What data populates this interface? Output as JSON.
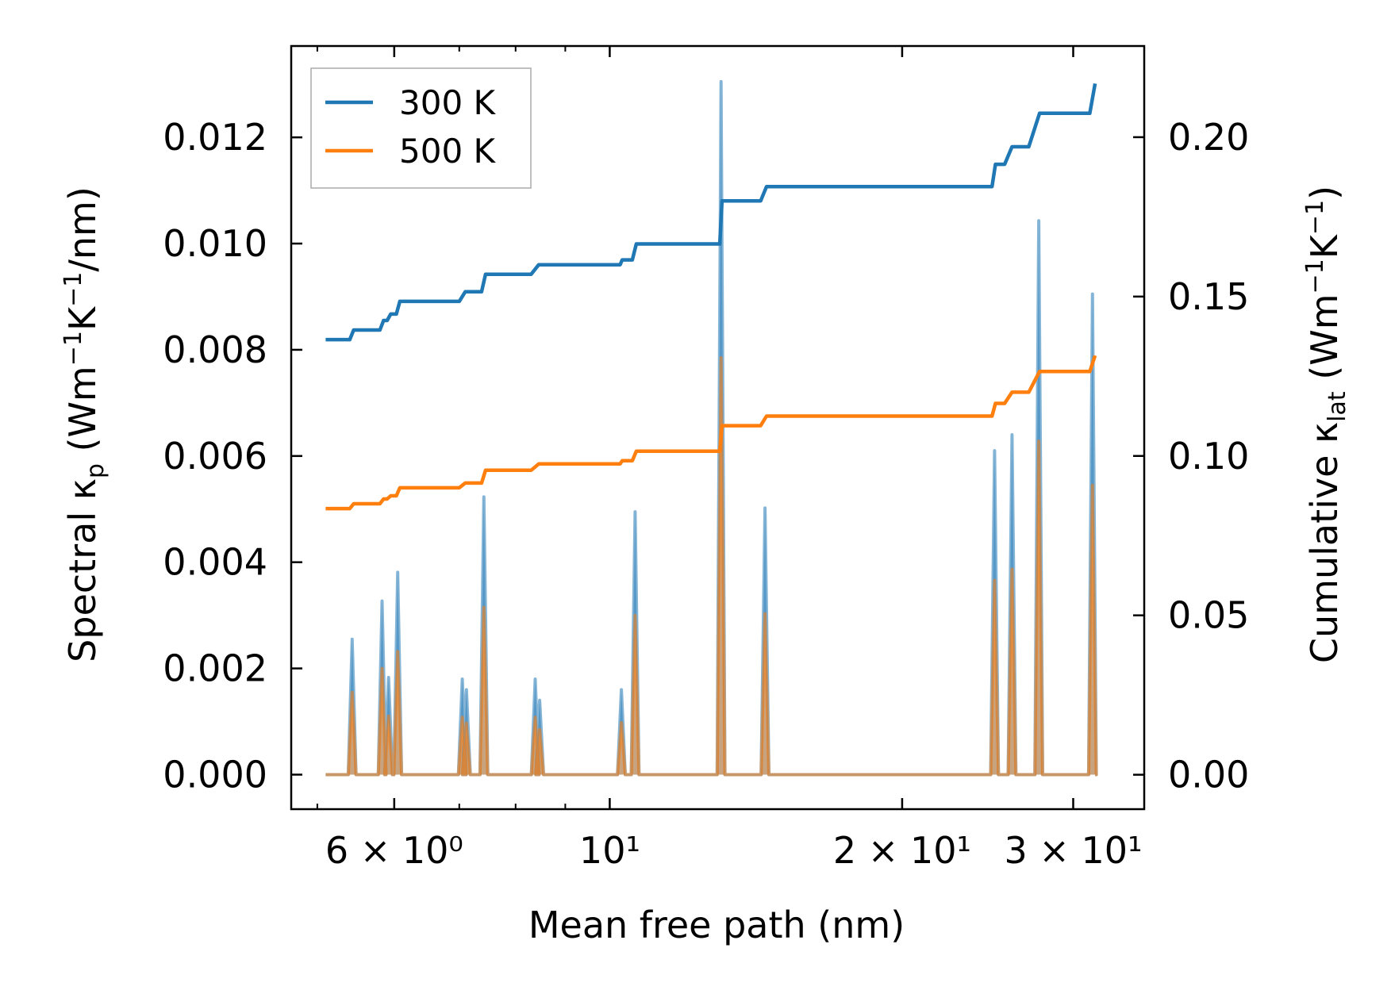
{
  "chart_data": {
    "type": "line",
    "xlabel": "Mean free path (nm)",
    "xscale": "log",
    "xlim": [
      4.7,
      35.5
    ],
    "x_ticks": [
      {
        "value": 6,
        "label": "6 × 10⁰"
      },
      {
        "value": 10,
        "label": "10¹"
      },
      {
        "value": 20,
        "label": "2 × 10¹"
      },
      {
        "value": 30,
        "label": "3 × 10¹"
      }
    ],
    "left_axis": {
      "label_parts": [
        "Spectral κ",
        "p",
        " (Wm",
        "−1",
        "K",
        "−1",
        "/nm)"
      ],
      "ylim": [
        -0.00065,
        0.01372
      ],
      "ticks": [
        {
          "value": 0.0,
          "label": "0.000"
        },
        {
          "value": 0.002,
          "label": "0.002"
        },
        {
          "value": 0.004,
          "label": "0.004"
        },
        {
          "value": 0.006,
          "label": "0.006"
        },
        {
          "value": 0.008,
          "label": "0.008"
        },
        {
          "value": 0.01,
          "label": "0.010"
        },
        {
          "value": 0.012,
          "label": "0.012"
        }
      ]
    },
    "right_axis": {
      "label_parts": [
        "Cumulative κ",
        "lat",
        " (Wm",
        "−1",
        "K",
        "−1",
        ")"
      ],
      "ylim": [
        -0.0108,
        0.2286
      ],
      "ticks": [
        {
          "value": 0.0,
          "label": "0.00"
        },
        {
          "value": 0.05,
          "label": "0.05"
        },
        {
          "value": 0.1,
          "label": "0.10"
        },
        {
          "value": 0.15,
          "label": "0.15"
        },
        {
          "value": 0.2,
          "label": "0.20"
        }
      ]
    },
    "legend": {
      "placement": "top-left",
      "entries": [
        {
          "label": "300 K",
          "color": "#1f77b4"
        },
        {
          "label": "500 K",
          "color": "#ff7f0e"
        }
      ]
    },
    "spectral_series": [
      {
        "name": "300 K",
        "color": "#1f77b4",
        "peaks": [
          [
            5.43,
            0.00255
          ],
          [
            5.83,
            0.00327
          ],
          [
            5.92,
            0.00183
          ],
          [
            6.05,
            0.00381
          ],
          [
            7.05,
            0.0018
          ],
          [
            7.12,
            0.0016
          ],
          [
            7.42,
            0.00523
          ],
          [
            8.38,
            0.0018
          ],
          [
            8.47,
            0.0014
          ],
          [
            10.28,
            0.0016
          ],
          [
            10.62,
            0.00495
          ],
          [
            13.02,
            0.01305
          ],
          [
            14.45,
            0.00502
          ],
          [
            24.9,
            0.0061
          ],
          [
            25.95,
            0.0064
          ],
          [
            27.65,
            0.01043
          ],
          [
            31.4,
            0.00905
          ]
        ]
      },
      {
        "name": "500 K",
        "color": "#ff7f0e",
        "peaks": [
          [
            5.43,
            0.00155
          ],
          [
            5.83,
            0.002
          ],
          [
            5.92,
            0.0011
          ],
          [
            6.05,
            0.00232
          ],
          [
            7.05,
            0.00108
          ],
          [
            7.12,
            0.00097
          ],
          [
            7.42,
            0.00315
          ],
          [
            8.38,
            0.00108
          ],
          [
            8.47,
            0.00085
          ],
          [
            10.28,
            0.00098
          ],
          [
            10.62,
            0.003
          ],
          [
            13.02,
            0.00785
          ],
          [
            14.45,
            0.00303
          ],
          [
            24.9,
            0.00366
          ],
          [
            25.95,
            0.00387
          ],
          [
            27.65,
            0.00628
          ],
          [
            31.4,
            0.00545
          ]
        ]
      }
    ],
    "cumulative_series": [
      {
        "name": "300 K",
        "color": "#1f77b4",
        "steps": [
          [
            5.1,
            0.1365
          ],
          [
            5.4,
            0.1365
          ],
          [
            5.45,
            0.1395
          ],
          [
            5.8,
            0.1395
          ],
          [
            5.85,
            0.1425
          ],
          [
            5.9,
            0.1425
          ],
          [
            5.95,
            0.1445
          ],
          [
            6.03,
            0.1445
          ],
          [
            6.08,
            0.1485
          ],
          [
            7.0,
            0.1485
          ],
          [
            7.1,
            0.1515
          ],
          [
            7.38,
            0.1515
          ],
          [
            7.45,
            0.157
          ],
          [
            8.3,
            0.157
          ],
          [
            8.45,
            0.16
          ],
          [
            10.25,
            0.16
          ],
          [
            10.3,
            0.1615
          ],
          [
            10.55,
            0.1615
          ],
          [
            10.65,
            0.1665
          ],
          [
            12.98,
            0.1665
          ],
          [
            13.05,
            0.18
          ],
          [
            14.3,
            0.18
          ],
          [
            14.5,
            0.1845
          ],
          [
            24.75,
            0.1845
          ],
          [
            24.95,
            0.1915
          ],
          [
            25.5,
            0.1915
          ],
          [
            25.95,
            0.197
          ],
          [
            27.0,
            0.197
          ],
          [
            27.7,
            0.2075
          ],
          [
            31.2,
            0.2075
          ],
          [
            31.6,
            0.2168
          ]
        ]
      },
      {
        "name": "500 K",
        "color": "#ff7f0e",
        "steps": [
          [
            5.1,
            0.0835
          ],
          [
            5.4,
            0.0835
          ],
          [
            5.45,
            0.085
          ],
          [
            5.8,
            0.085
          ],
          [
            5.85,
            0.0865
          ],
          [
            5.9,
            0.0865
          ],
          [
            5.95,
            0.0875
          ],
          [
            6.03,
            0.0875
          ],
          [
            6.08,
            0.09
          ],
          [
            7.0,
            0.09
          ],
          [
            7.1,
            0.0915
          ],
          [
            7.38,
            0.0915
          ],
          [
            7.45,
            0.0955
          ],
          [
            8.3,
            0.0955
          ],
          [
            8.45,
            0.0975
          ],
          [
            10.25,
            0.0975
          ],
          [
            10.3,
            0.0985
          ],
          [
            10.55,
            0.0985
          ],
          [
            10.65,
            0.1015
          ],
          [
            12.98,
            0.1015
          ],
          [
            13.05,
            0.1095
          ],
          [
            14.3,
            0.1095
          ],
          [
            14.5,
            0.1125
          ],
          [
            24.75,
            0.1125
          ],
          [
            24.95,
            0.1165
          ],
          [
            25.5,
            0.1165
          ],
          [
            25.95,
            0.12
          ],
          [
            27.0,
            0.12
          ],
          [
            27.7,
            0.1265
          ],
          [
            31.2,
            0.1265
          ],
          [
            31.6,
            0.1315
          ]
        ]
      }
    ]
  }
}
